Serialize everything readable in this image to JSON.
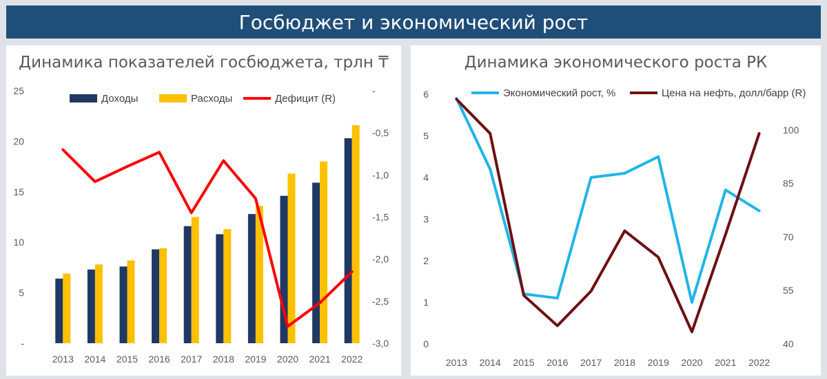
{
  "banner": {
    "title": "Госбюджет и экономический рост"
  },
  "chart_data": [
    {
      "type": "bar",
      "title": "Динамика показателей госбюджета, трлн ₸",
      "categories": [
        "2013",
        "2014",
        "2015",
        "2016",
        "2017",
        "2018",
        "2019",
        "2020",
        "2021",
        "2022"
      ],
      "series": [
        {
          "name": "Доходы",
          "kind": "bar",
          "axis": "left",
          "color": "#1f3864",
          "values": [
            6.4,
            7.3,
            7.6,
            9.3,
            11.6,
            10.8,
            12.8,
            14.6,
            15.9,
            20.3
          ]
        },
        {
          "name": "Расходы",
          "kind": "bar",
          "axis": "left",
          "color": "#ffc000",
          "values": [
            6.9,
            7.8,
            8.2,
            9.4,
            12.5,
            11.3,
            13.6,
            16.8,
            18.0,
            21.6
          ]
        },
        {
          "name": "Дефицит (R)",
          "kind": "line",
          "axis": "right",
          "color": "#ff0000",
          "values": [
            -0.7,
            -1.08,
            -0.9,
            -0.73,
            -1.45,
            -0.83,
            -1.28,
            -2.8,
            -2.52,
            -2.15
          ]
        }
      ],
      "y_left": {
        "min": 0,
        "max": 25,
        "ticks": [
          0,
          5,
          10,
          15,
          20,
          25
        ],
        "tick_labels": [
          "-",
          "5",
          "10",
          "15",
          "20",
          "25"
        ]
      },
      "y_right": {
        "min": -3.0,
        "max": 0,
        "ticks": [
          0,
          -0.5,
          -1.0,
          -1.5,
          -2.0,
          -2.5,
          -3.0
        ],
        "tick_labels": [
          "-",
          "-0,5",
          "-1,0",
          "-1,5",
          "-2,0",
          "-2,5",
          "-3,0"
        ]
      },
      "grid": false,
      "legend": "top"
    },
    {
      "type": "line",
      "title": "Динамика экономического роста РК",
      "categories": [
        "2013",
        "2014",
        "2015",
        "2016",
        "2017",
        "2018",
        "2019",
        "2020",
        "2021",
        "2022"
      ],
      "series": [
        {
          "name": "Экономический рост, %",
          "axis": "left",
          "color": "#1fb5e8",
          "values": [
            5.9,
            4.2,
            1.2,
            1.1,
            4.0,
            4.1,
            4.5,
            1.0,
            3.7,
            3.2
          ]
        },
        {
          "name": "Цена на нефть, долл/барр (R)",
          "axis": "right",
          "color": "#6e0f12",
          "values": [
            108.6,
            99.0,
            53.6,
            45.1,
            54.8,
            71.7,
            64.3,
            43.4,
            70.7,
            99.0
          ]
        }
      ],
      "y_left": {
        "min": 0,
        "max": 6,
        "ticks": [
          0,
          1,
          2,
          3,
          4,
          5,
          6
        ],
        "tick_labels": [
          "0",
          "1",
          "2",
          "3",
          "4",
          "5",
          "6"
        ]
      },
      "y_right": {
        "min": 40,
        "max": 110,
        "ticks": [
          40,
          55,
          70,
          85,
          100
        ],
        "tick_labels": [
          "40",
          "55",
          "70",
          "85",
          "100"
        ]
      },
      "grid": false,
      "legend": "top"
    }
  ]
}
